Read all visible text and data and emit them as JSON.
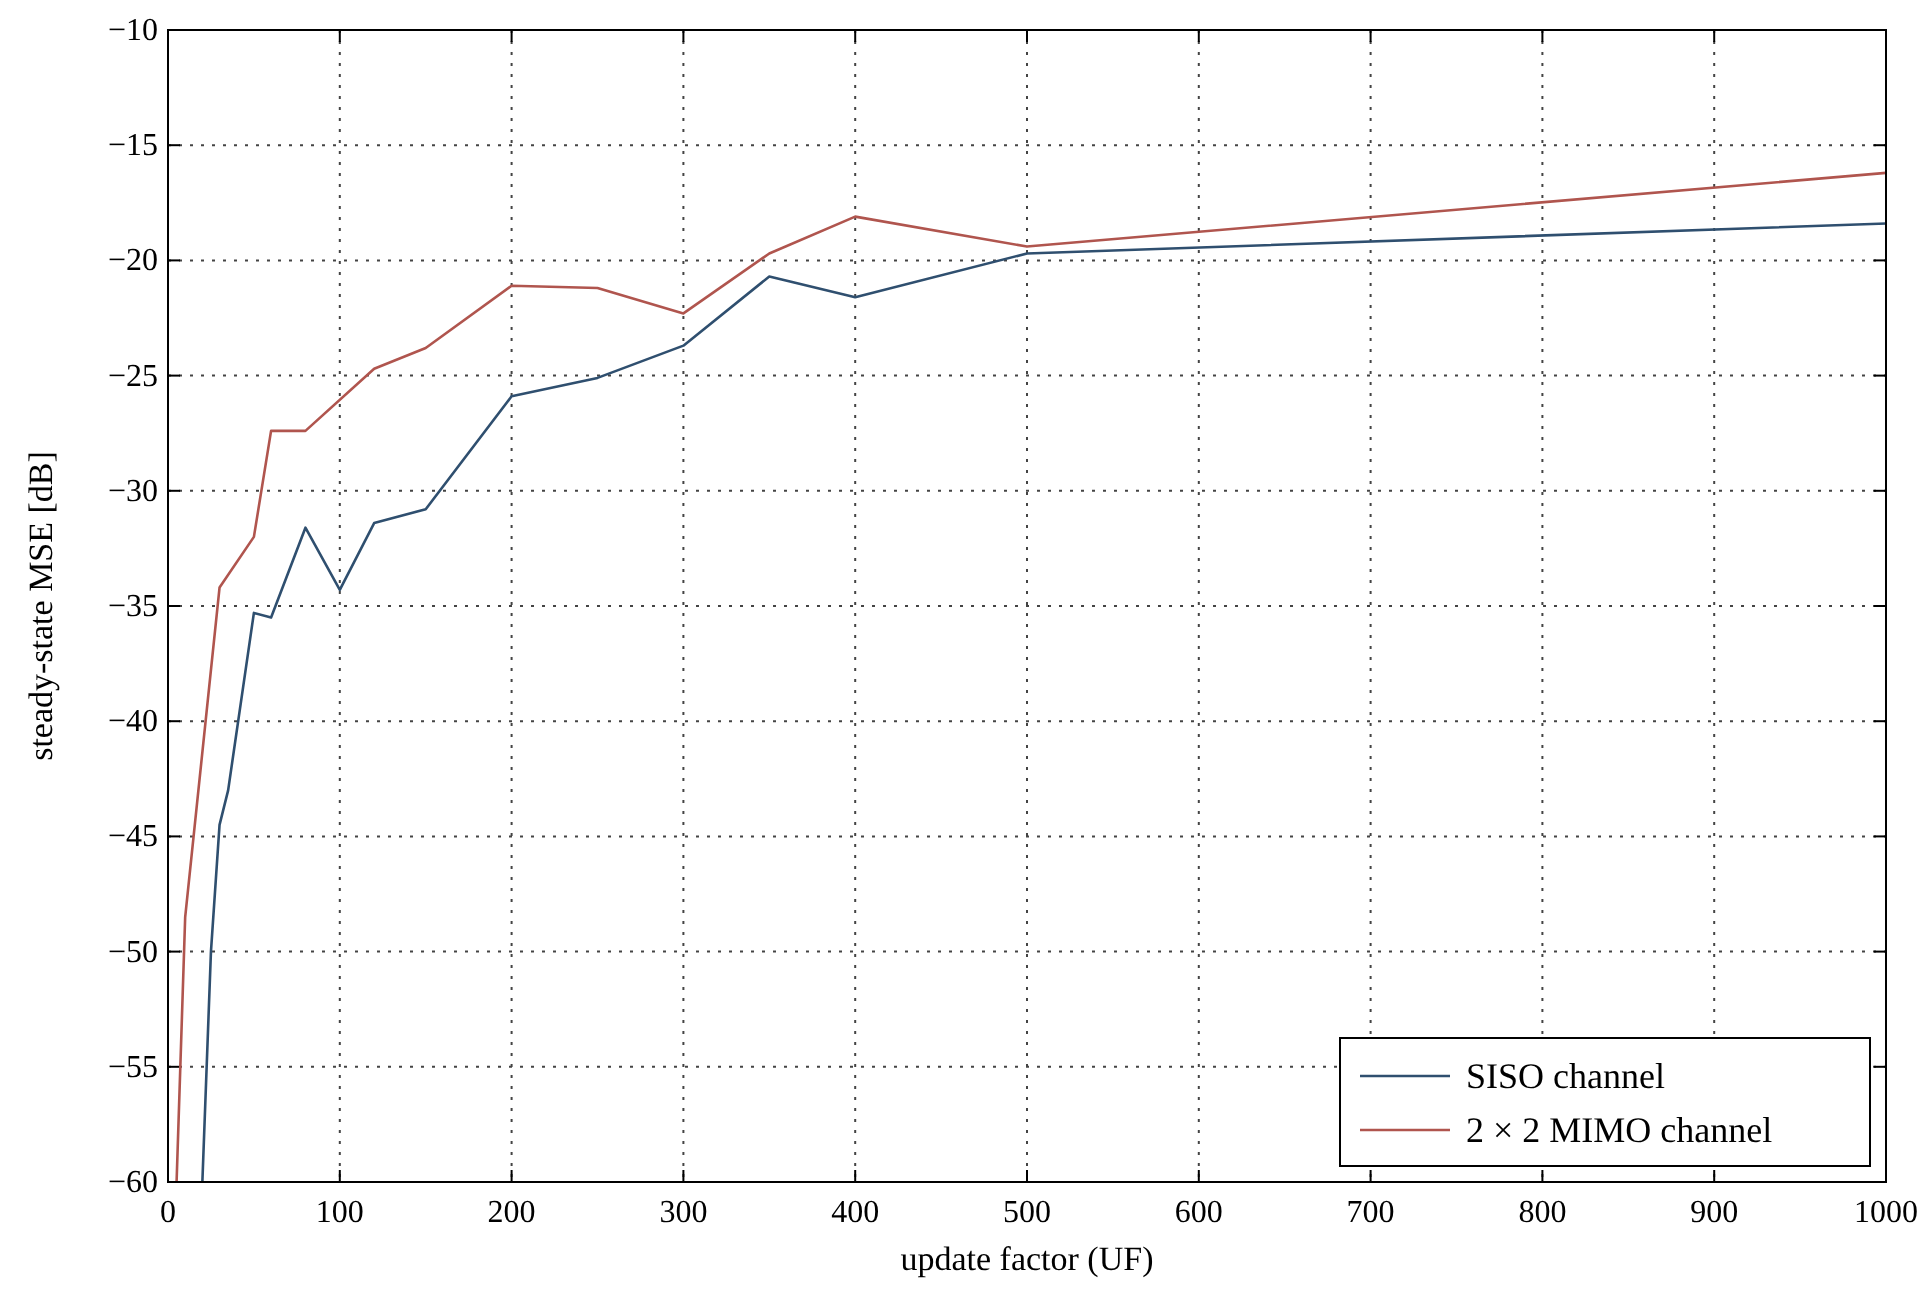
{
  "chart_data": {
    "type": "line",
    "xlabel": "update factor (UF)",
    "ylabel": "steady-state MSE [dB]",
    "xlim": [
      0,
      1000
    ],
    "xticks": [
      0,
      100,
      200,
      300,
      400,
      500,
      600,
      700,
      800,
      900,
      1000
    ],
    "ylim": [
      -60,
      -10
    ],
    "yticks": [
      -60,
      -55,
      -50,
      -45,
      -40,
      -35,
      -30,
      -25,
      -20,
      -15,
      -10
    ],
    "grid": true,
    "legend": "bottom right",
    "series": [
      {
        "name": "SISO channel",
        "color": "#2f4f6f",
        "x": [
          20,
          25,
          30,
          35,
          50,
          60,
          80,
          100,
          120,
          150,
          200,
          250,
          300,
          350,
          400,
          500,
          1000
        ],
        "values": [
          -60,
          -50,
          -44.5,
          -43,
          -35.3,
          -35.5,
          -31.6,
          -34.3,
          -31.4,
          -30.8,
          -25.9,
          -25.1,
          -23.7,
          -20.7,
          -21.6,
          -19.7,
          -18.4
        ]
      },
      {
        "name": "2 × 2 MIMO channel",
        "color": "#b0554e",
        "x": [
          5,
          10,
          30,
          50,
          60,
          80,
          120,
          150,
          200,
          250,
          300,
          350,
          400,
          500,
          1000
        ],
        "values": [
          -60,
          -48.5,
          -34.2,
          -32,
          -27.4,
          -27.4,
          -24.7,
          -23.8,
          -21.1,
          -21.2,
          -22.3,
          -19.7,
          -18.1,
          -19.4,
          -16.2
        ]
      }
    ]
  }
}
